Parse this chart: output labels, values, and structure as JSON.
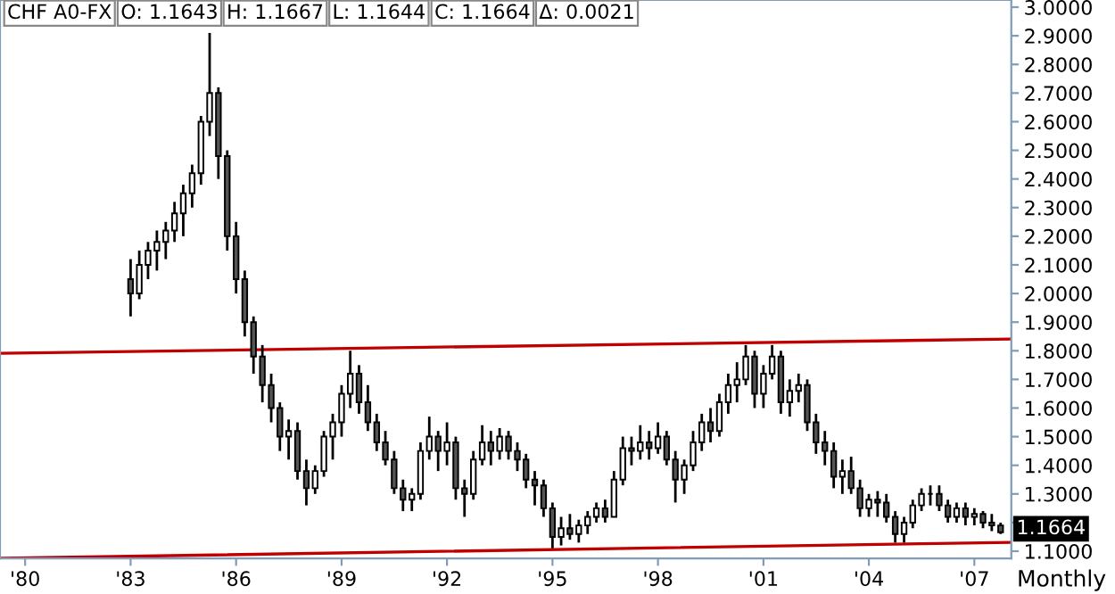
{
  "chart_data": {
    "type": "candlestick",
    "x": [
      "1983-01",
      "1983-04",
      "1983-07",
      "1983-10",
      "1984-01",
      "1984-04",
      "1984-07",
      "1984-10",
      "1985-01",
      "1985-04",
      "1985-07",
      "1985-10",
      "1986-01",
      "1986-04",
      "1986-07",
      "1986-10",
      "1987-01",
      "1987-04",
      "1987-07",
      "1987-10",
      "1988-01",
      "1988-04",
      "1988-07",
      "1988-10",
      "1989-01",
      "1989-04",
      "1989-07",
      "1989-10",
      "1990-01",
      "1990-04",
      "1990-07",
      "1990-10",
      "1991-01",
      "1991-04",
      "1991-07",
      "1991-10",
      "1992-01",
      "1992-04",
      "1992-07",
      "1992-10",
      "1993-01",
      "1993-04",
      "1993-07",
      "1993-10",
      "1994-01",
      "1994-04",
      "1994-07",
      "1994-10",
      "1995-01",
      "1995-04",
      "1995-07",
      "1995-10",
      "1996-01",
      "1996-04",
      "1996-07",
      "1996-10",
      "1997-01",
      "1997-04",
      "1997-07",
      "1997-10",
      "1998-01",
      "1998-04",
      "1998-07",
      "1998-10",
      "1999-01",
      "1999-04",
      "1999-07",
      "1999-10",
      "2000-01",
      "2000-04",
      "2000-07",
      "2000-10",
      "2001-01",
      "2001-04",
      "2001-07",
      "2001-10",
      "2002-01",
      "2002-04",
      "2002-07",
      "2002-10",
      "2003-01",
      "2003-04",
      "2003-07",
      "2003-10",
      "2004-01",
      "2004-04",
      "2004-07",
      "2004-10",
      "2005-01",
      "2005-04",
      "2005-07",
      "2005-10",
      "2006-01",
      "2006-04",
      "2006-07",
      "2006-10",
      "2007-01",
      "2007-04",
      "2007-07",
      "2007-10"
    ],
    "ohlc": [
      [
        2.05,
        2.12,
        1.92,
        2.0
      ],
      [
        2.0,
        2.15,
        1.98,
        2.1
      ],
      [
        2.1,
        2.18,
        2.05,
        2.15
      ],
      [
        2.15,
        2.22,
        2.08,
        2.18
      ],
      [
        2.18,
        2.25,
        2.12,
        2.22
      ],
      [
        2.22,
        2.32,
        2.18,
        2.28
      ],
      [
        2.28,
        2.38,
        2.2,
        2.35
      ],
      [
        2.35,
        2.45,
        2.3,
        2.42
      ],
      [
        2.42,
        2.62,
        2.38,
        2.6
      ],
      [
        2.6,
        2.91,
        2.55,
        2.7
      ],
      [
        2.7,
        2.72,
        2.4,
        2.48
      ],
      [
        2.48,
        2.5,
        2.15,
        2.2
      ],
      [
        2.2,
        2.25,
        2.0,
        2.05
      ],
      [
        2.05,
        2.08,
        1.85,
        1.9
      ],
      [
        1.9,
        1.92,
        1.72,
        1.78
      ],
      [
        1.78,
        1.82,
        1.62,
        1.68
      ],
      [
        1.68,
        1.72,
        1.55,
        1.6
      ],
      [
        1.6,
        1.62,
        1.45,
        1.5
      ],
      [
        1.5,
        1.56,
        1.42,
        1.52
      ],
      [
        1.52,
        1.55,
        1.35,
        1.38
      ],
      [
        1.38,
        1.42,
        1.26,
        1.32
      ],
      [
        1.32,
        1.4,
        1.3,
        1.38
      ],
      [
        1.38,
        1.52,
        1.36,
        1.5
      ],
      [
        1.5,
        1.58,
        1.42,
        1.55
      ],
      [
        1.55,
        1.68,
        1.5,
        1.65
      ],
      [
        1.65,
        1.8,
        1.6,
        1.72
      ],
      [
        1.72,
        1.75,
        1.58,
        1.62
      ],
      [
        1.62,
        1.68,
        1.52,
        1.55
      ],
      [
        1.55,
        1.58,
        1.45,
        1.48
      ],
      [
        1.48,
        1.52,
        1.4,
        1.42
      ],
      [
        1.42,
        1.45,
        1.3,
        1.32
      ],
      [
        1.32,
        1.35,
        1.24,
        1.28
      ],
      [
        1.28,
        1.32,
        1.24,
        1.3
      ],
      [
        1.3,
        1.48,
        1.28,
        1.45
      ],
      [
        1.45,
        1.57,
        1.42,
        1.5
      ],
      [
        1.5,
        1.52,
        1.38,
        1.45
      ],
      [
        1.45,
        1.55,
        1.4,
        1.48
      ],
      [
        1.48,
        1.5,
        1.28,
        1.32
      ],
      [
        1.32,
        1.35,
        1.22,
        1.3
      ],
      [
        1.3,
        1.45,
        1.28,
        1.42
      ],
      [
        1.42,
        1.54,
        1.4,
        1.48
      ],
      [
        1.48,
        1.52,
        1.4,
        1.45
      ],
      [
        1.45,
        1.53,
        1.42,
        1.5
      ],
      [
        1.5,
        1.52,
        1.42,
        1.45
      ],
      [
        1.45,
        1.48,
        1.38,
        1.42
      ],
      [
        1.42,
        1.44,
        1.32,
        1.35
      ],
      [
        1.35,
        1.38,
        1.26,
        1.33
      ],
      [
        1.33,
        1.35,
        1.22,
        1.25
      ],
      [
        1.25,
        1.27,
        1.11,
        1.15
      ],
      [
        1.15,
        1.22,
        1.12,
        1.18
      ],
      [
        1.18,
        1.23,
        1.14,
        1.16
      ],
      [
        1.16,
        1.21,
        1.13,
        1.19
      ],
      [
        1.19,
        1.24,
        1.16,
        1.22
      ],
      [
        1.22,
        1.27,
        1.2,
        1.25
      ],
      [
        1.25,
        1.28,
        1.2,
        1.22
      ],
      [
        1.22,
        1.38,
        1.22,
        1.35
      ],
      [
        1.35,
        1.5,
        1.33,
        1.46
      ],
      [
        1.46,
        1.5,
        1.4,
        1.45
      ],
      [
        1.45,
        1.54,
        1.42,
        1.48
      ],
      [
        1.48,
        1.52,
        1.42,
        1.46
      ],
      [
        1.46,
        1.55,
        1.44,
        1.5
      ],
      [
        1.5,
        1.52,
        1.4,
        1.42
      ],
      [
        1.42,
        1.45,
        1.27,
        1.35
      ],
      [
        1.35,
        1.42,
        1.3,
        1.4
      ],
      [
        1.4,
        1.52,
        1.38,
        1.48
      ],
      [
        1.48,
        1.58,
        1.45,
        1.55
      ],
      [
        1.55,
        1.6,
        1.48,
        1.52
      ],
      [
        1.52,
        1.65,
        1.5,
        1.62
      ],
      [
        1.62,
        1.72,
        1.58,
        1.68
      ],
      [
        1.68,
        1.76,
        1.62,
        1.7
      ],
      [
        1.7,
        1.82,
        1.68,
        1.78
      ],
      [
        1.78,
        1.8,
        1.6,
        1.65
      ],
      [
        1.65,
        1.75,
        1.6,
        1.72
      ],
      [
        1.72,
        1.82,
        1.7,
        1.78
      ],
      [
        1.78,
        1.8,
        1.58,
        1.62
      ],
      [
        1.62,
        1.7,
        1.57,
        1.66
      ],
      [
        1.66,
        1.72,
        1.62,
        1.68
      ],
      [
        1.68,
        1.7,
        1.52,
        1.55
      ],
      [
        1.55,
        1.58,
        1.44,
        1.48
      ],
      [
        1.48,
        1.52,
        1.4,
        1.45
      ],
      [
        1.45,
        1.48,
        1.32,
        1.36
      ],
      [
        1.36,
        1.42,
        1.3,
        1.38
      ],
      [
        1.38,
        1.43,
        1.3,
        1.32
      ],
      [
        1.32,
        1.35,
        1.22,
        1.25
      ],
      [
        1.25,
        1.3,
        1.22,
        1.28
      ],
      [
        1.28,
        1.31,
        1.22,
        1.27
      ],
      [
        1.27,
        1.3,
        1.2,
        1.22
      ],
      [
        1.22,
        1.24,
        1.13,
        1.16
      ],
      [
        1.16,
        1.22,
        1.13,
        1.2
      ],
      [
        1.2,
        1.28,
        1.18,
        1.26
      ],
      [
        1.26,
        1.32,
        1.24,
        1.3
      ],
      [
        1.3,
        1.33,
        1.26,
        1.3
      ],
      [
        1.3,
        1.33,
        1.24,
        1.26
      ],
      [
        1.26,
        1.28,
        1.2,
        1.22
      ],
      [
        1.22,
        1.27,
        1.2,
        1.25
      ],
      [
        1.25,
        1.27,
        1.19,
        1.22
      ],
      [
        1.22,
        1.25,
        1.19,
        1.23
      ],
      [
        1.23,
        1.24,
        1.18,
        1.2
      ],
      [
        1.2,
        1.23,
        1.17,
        1.19
      ],
      [
        1.19,
        1.2,
        1.16,
        1.1664
      ]
    ],
    "color": "#000000",
    "series": [
      {
        "type": "line",
        "color": "#c00000",
        "x": [
          "1979-04-15",
          "2008-01-20"
        ],
        "values": [
          1.791,
          1.841
        ]
      },
      {
        "type": "line",
        "color": "#c00000",
        "x": [
          "1979-04-15",
          "2008-01-20"
        ],
        "values": [
          1.075,
          1.131
        ]
      }
    ],
    "xlim": [
      "1979-04-15",
      "2008-01-20"
    ],
    "xticks": [
      {
        "value": "1980-01-01",
        "label": "'80"
      },
      {
        "value": "1983-01-01",
        "label": "'83"
      },
      {
        "value": "1986-01-01",
        "label": "'86"
      },
      {
        "value": "1989-01-01",
        "label": "'89"
      },
      {
        "value": "1992-01-01",
        "label": "'92"
      },
      {
        "value": "1995-01-01",
        "label": "'95"
      },
      {
        "value": "1998-01-01",
        "label": "'98"
      },
      {
        "value": "2001-01-01",
        "label": "'01"
      },
      {
        "value": "2004-01-01",
        "label": "'04"
      },
      {
        "value": "2007-01-01",
        "label": "'07"
      }
    ],
    "ylim": [
      1.075,
      3.025
    ],
    "yticks": [
      {
        "value": 1.1,
        "label": "1.1000"
      },
      {
        "value": 1.2,
        "label": null
      },
      {
        "value": 1.3,
        "label": "1.3000"
      },
      {
        "value": 1.4,
        "label": "1.4000"
      },
      {
        "value": 1.5,
        "label": "1.5000"
      },
      {
        "value": 1.6,
        "label": "1.6000"
      },
      {
        "value": 1.7,
        "label": "1.7000"
      },
      {
        "value": 1.8,
        "label": "1.8000"
      },
      {
        "value": 1.9,
        "label": "1.9000"
      },
      {
        "value": 2.0,
        "label": "2.0000"
      },
      {
        "value": 2.1,
        "label": "2.1000"
      },
      {
        "value": 2.2,
        "label": "2.2000"
      },
      {
        "value": 2.3,
        "label": "2.3000"
      },
      {
        "value": 2.4,
        "label": "2.4000"
      },
      {
        "value": 2.5,
        "label": "2.5000"
      },
      {
        "value": 2.6,
        "label": "2.6000"
      },
      {
        "value": 2.7,
        "label": "2.7000"
      },
      {
        "value": 2.8,
        "label": "2.8000"
      },
      {
        "value": 2.9,
        "label": "2.9000"
      },
      {
        "value": 3.0,
        "label": "3.0000"
      }
    ],
    "grid": false,
    "annotations": [
      "CHF A0-FX",
      "O: 1.1643",
      "H: 1.1667",
      "L: 1.1644",
      "C: 1.1664",
      "Δ: 0.0021",
      "Monthly",
      {
        "text": "1.1664",
        "x": "2007-10",
        "y": 1.1664
      }
    ]
  }
}
